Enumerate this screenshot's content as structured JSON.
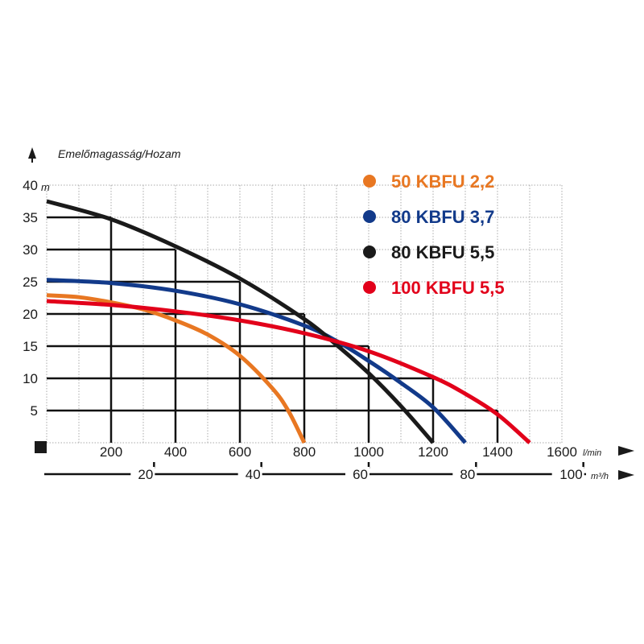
{
  "chart_data": {
    "type": "line",
    "title": "Emelőmagasság/Hozam",
    "ylabel_unit": "m",
    "xlabel_unit": "l/min",
    "x2label_unit": "m³/h",
    "xlim": [
      0,
      1600
    ],
    "ylim": [
      0,
      40
    ],
    "xticks": [
      200,
      400,
      600,
      800,
      1000,
      1200,
      1400,
      1600
    ],
    "yticks": [
      5,
      10,
      15,
      20,
      25,
      30,
      35,
      40
    ],
    "x2ticks": [
      20,
      40,
      60,
      80,
      100
    ],
    "grid": true,
    "legend_position": "top-right",
    "series": [
      {
        "name": "50 KBFU 2,2",
        "color": "#e87722",
        "x": [
          0,
          100,
          200,
          300,
          400,
          500,
          600,
          700,
          750,
          800
        ],
        "y": [
          22.9,
          22.6,
          21.8,
          20.7,
          19.0,
          16.8,
          13.5,
          8.5,
          5.0,
          0
        ]
      },
      {
        "name": "80 KBFU 3,7",
        "color": "#123a8a",
        "x": [
          0,
          200,
          400,
          600,
          800,
          900,
          1000,
          1100,
          1200,
          1300
        ],
        "y": [
          25.3,
          24.8,
          23.6,
          21.5,
          18.2,
          15.8,
          12.7,
          9.3,
          5.5,
          0
        ]
      },
      {
        "name": "80 KBFU 5,5",
        "color": "#1a1a1a",
        "x": [
          0,
          200,
          400,
          600,
          800,
          900,
          1000,
          1100,
          1200
        ],
        "y": [
          37.5,
          34.7,
          30.5,
          25.5,
          19.2,
          15.2,
          10.8,
          5.7,
          0
        ]
      },
      {
        "name": "100 KBFU 5,5",
        "color": "#e2001a",
        "x": [
          0,
          200,
          400,
          600,
          800,
          1000,
          1200,
          1300,
          1400,
          1500
        ],
        "y": [
          22.0,
          21.4,
          20.4,
          19.0,
          17.0,
          14.2,
          10.2,
          7.6,
          4.4,
          0
        ]
      }
    ]
  }
}
